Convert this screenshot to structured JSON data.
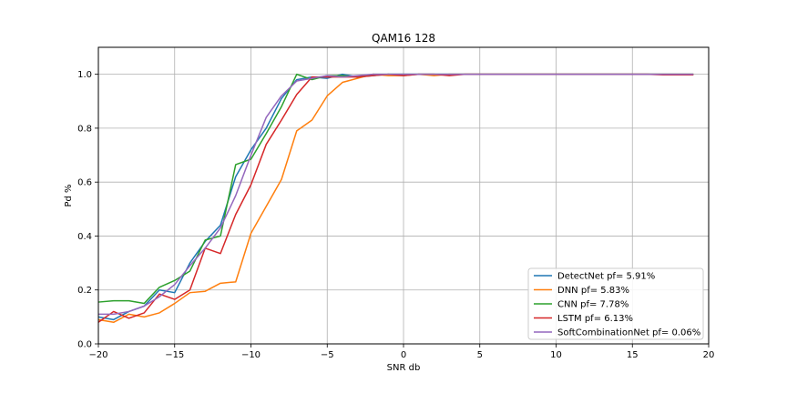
{
  "chart_data": {
    "type": "line",
    "title": "QAM16 128",
    "xlabel": "SNR db",
    "ylabel": "Pd %",
    "xlim": [
      -20,
      20
    ],
    "ylim": [
      0,
      1.1
    ],
    "xticks": [
      -20,
      -15,
      -10,
      -5,
      0,
      5,
      10,
      15,
      20
    ],
    "yticks": [
      0.0,
      0.2,
      0.4,
      0.6,
      0.8,
      1.0
    ],
    "xtick_labels": [
      "−20",
      "−15",
      "−10",
      "−5",
      "0",
      "5",
      "10",
      "15",
      "20"
    ],
    "ytick_labels": [
      "0.0",
      "0.2",
      "0.4",
      "0.6",
      "0.8",
      "1.0"
    ],
    "grid": true,
    "legend_position": "lower-right",
    "x": [
      -20,
      -19,
      -18,
      -17,
      -16,
      -15,
      -14,
      -13,
      -12,
      -11,
      -10,
      -9,
      -8,
      -7,
      -6,
      -5,
      -4,
      -3,
      -2,
      -1,
      0,
      1,
      2,
      3,
      4,
      5,
      6,
      7,
      8,
      9,
      10,
      11,
      12,
      13,
      14,
      15,
      16,
      17,
      18,
      19
    ],
    "series": [
      {
        "name": "DetectNet pf= 5.91%",
        "color": "#1f77b4",
        "values": [
          0.1,
          0.09,
          0.12,
          0.14,
          0.2,
          0.19,
          0.3,
          0.38,
          0.44,
          0.62,
          0.72,
          0.8,
          0.91,
          0.98,
          0.99,
          0.985,
          1.0,
          0.99,
          0.995,
          1.0,
          1.0,
          1.0,
          1.0,
          1.0,
          1.0,
          1.0,
          1.0,
          1.0,
          1.0,
          1.0,
          1.0,
          1.0,
          1.0,
          1.0,
          1.0,
          1.0,
          1.0,
          1.0,
          1.0,
          1.0
        ]
      },
      {
        "name": "DNN pf= 5.83%",
        "color": "#ff7f0e",
        "values": [
          0.09,
          0.08,
          0.11,
          0.1,
          0.115,
          0.15,
          0.19,
          0.195,
          0.225,
          0.23,
          0.41,
          0.51,
          0.61,
          0.79,
          0.83,
          0.92,
          0.97,
          0.985,
          1.0,
          0.995,
          0.995,
          1.0,
          0.995,
          1.0,
          1.0,
          1.0,
          1.0,
          1.0,
          1.0,
          1.0,
          1.0,
          1.0,
          1.0,
          1.0,
          1.0,
          1.0,
          1.0,
          1.0,
          1.0,
          1.0
        ]
      },
      {
        "name": "CNN pf= 7.78%",
        "color": "#2ca02c",
        "values": [
          0.155,
          0.16,
          0.16,
          0.15,
          0.21,
          0.235,
          0.27,
          0.385,
          0.4,
          0.665,
          0.685,
          0.78,
          0.88,
          1.0,
          0.98,
          0.995,
          0.995,
          0.99,
          1.0,
          1.0,
          1.0,
          1.0,
          1.0,
          1.0,
          1.0,
          1.0,
          1.0,
          1.0,
          1.0,
          1.0,
          1.0,
          1.0,
          1.0,
          1.0,
          1.0,
          1.0,
          1.0,
          1.0,
          1.0,
          1.0
        ]
      },
      {
        "name": "LSTM pf= 6.13%",
        "color": "#d62728",
        "values": [
          0.08,
          0.12,
          0.095,
          0.115,
          0.185,
          0.165,
          0.2,
          0.355,
          0.335,
          0.48,
          0.59,
          0.74,
          0.83,
          0.925,
          0.99,
          0.99,
          0.99,
          0.99,
          0.995,
          1.0,
          0.995,
          1.0,
          1.0,
          0.995,
          1.0,
          1.0,
          1.0,
          1.0,
          1.0,
          1.0,
          1.0,
          1.0,
          1.0,
          1.0,
          1.0,
          1.0,
          1.0,
          0.998,
          0.998,
          0.998
        ]
      },
      {
        "name": "SoftCombinationNet pf= 0.06%",
        "color": "#9467bd",
        "values": [
          0.11,
          0.11,
          0.12,
          0.14,
          0.175,
          0.22,
          0.29,
          0.355,
          0.43,
          0.55,
          0.7,
          0.84,
          0.92,
          0.975,
          0.985,
          0.995,
          0.99,
          0.995,
          1.0,
          1.0,
          1.0,
          1.0,
          1.0,
          1.0,
          1.0,
          1.0,
          1.0,
          1.0,
          1.0,
          1.0,
          1.0,
          1.0,
          1.0,
          1.0,
          1.0,
          1.0,
          1.0,
          1.0,
          1.0,
          1.0
        ]
      }
    ]
  }
}
